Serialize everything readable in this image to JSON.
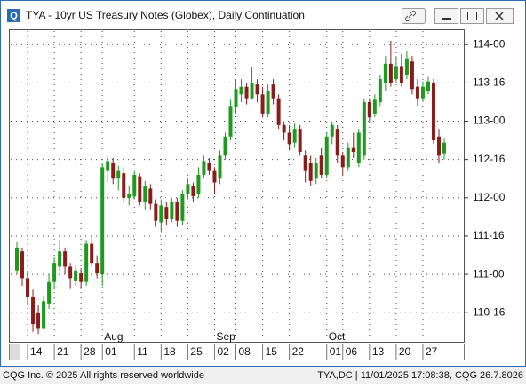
{
  "window": {
    "title": "TYA - 10yr US Treasury Notes (Globex), Daily Continuation"
  },
  "chart_data": {
    "type": "candlestick",
    "categories": [
      null,
      null,
      "14",
      null,
      null,
      null,
      null,
      "21",
      null,
      null,
      null,
      null,
      "28",
      null,
      null,
      null,
      "01",
      null,
      null,
      null,
      null,
      null,
      "11",
      null,
      null,
      null,
      null,
      "18",
      null,
      null,
      null,
      null,
      "25",
      null,
      null,
      null,
      null,
      "02",
      null,
      null,
      null,
      "08",
      null,
      null,
      null,
      null,
      "15",
      null,
      null,
      null,
      null,
      "22",
      null,
      null,
      null,
      null,
      null,
      null,
      "01",
      null,
      null,
      "06",
      null,
      null,
      null,
      null,
      "13",
      null,
      null,
      null,
      null,
      "20",
      null,
      null,
      null,
      null,
      "27",
      null,
      null,
      null,
      null
    ],
    "month_categories": [
      null,
      null,
      null,
      null,
      null,
      null,
      null,
      null,
      null,
      null,
      null,
      null,
      null,
      null,
      null,
      null,
      "Aug",
      null,
      null,
      null,
      null,
      null,
      null,
      null,
      null,
      null,
      null,
      null,
      null,
      null,
      null,
      null,
      null,
      null,
      null,
      null,
      null,
      "Sep",
      null,
      null,
      null,
      null,
      null,
      null,
      null,
      null,
      null,
      null,
      null,
      null,
      null,
      null,
      null,
      null,
      null,
      null,
      null,
      null,
      "Oct",
      null,
      null,
      null,
      null,
      null,
      null,
      null,
      null,
      null,
      null,
      null,
      null,
      null,
      null,
      null,
      null,
      null,
      null,
      null,
      null,
      null,
      null
    ],
    "open": [
      111.05,
      111.3,
      110.95,
      110.7,
      110.5,
      110.3,
      110.62,
      110.9,
      111.1,
      111.3,
      111.1,
      110.92,
      111.02,
      110.9,
      111.4,
      111.15,
      111.0,
      112.35,
      112.45,
      112.25,
      112.32,
      112.0,
      112.02,
      112.28,
      111.95,
      112.12,
      111.92,
      111.68,
      111.88,
      111.72,
      111.95,
      111.7,
      112.05,
      112.15,
      112.05,
      112.3,
      112.45,
      112.35,
      112.25,
      112.55,
      112.8,
      113.18,
      113.35,
      113.45,
      113.3,
      113.48,
      113.35,
      113.1,
      113.48,
      113.3,
      112.95,
      112.85,
      112.72,
      112.9,
      112.55,
      112.45,
      112.25,
      112.55,
      112.3,
      112.8,
      112.9,
      112.55,
      112.4,
      112.65,
      112.45,
      112.55,
      113.25,
      113.1,
      113.25,
      113.5,
      113.75,
      113.55,
      113.72,
      113.6,
      113.78,
      113.45,
      113.3,
      113.4,
      113.5,
      112.8,
      112.58
    ],
    "high": [
      111.42,
      111.35,
      111.05,
      110.8,
      110.6,
      110.72,
      111.0,
      111.22,
      111.45,
      111.35,
      111.15,
      111.12,
      111.08,
      111.45,
      111.5,
      111.25,
      112.45,
      112.55,
      112.52,
      112.42,
      112.4,
      112.15,
      112.35,
      112.32,
      112.22,
      112.18,
      111.98,
      111.98,
      111.95,
      112.0,
      112.0,
      112.1,
      112.25,
      112.2,
      112.4,
      112.55,
      112.52,
      112.4,
      112.62,
      112.85,
      113.28,
      113.55,
      113.55,
      113.5,
      113.7,
      113.55,
      113.45,
      113.48,
      113.55,
      113.35,
      113.0,
      112.95,
      112.98,
      112.95,
      112.62,
      112.55,
      112.52,
      112.65,
      112.85,
      113.0,
      112.95,
      112.6,
      112.72,
      112.85,
      112.9,
      113.3,
      113.3,
      113.35,
      113.6,
      113.85,
      114.05,
      113.85,
      113.88,
      113.92,
      113.85,
      113.55,
      113.52,
      113.58,
      113.55,
      112.9,
      112.78
    ],
    "low": [
      111.0,
      110.85,
      110.6,
      110.25,
      110.22,
      110.28,
      110.55,
      110.8,
      111.05,
      111.0,
      110.82,
      110.85,
      110.82,
      110.85,
      111.1,
      110.95,
      110.85,
      112.2,
      112.18,
      112.1,
      111.95,
      111.9,
      111.98,
      111.9,
      111.85,
      111.85,
      111.62,
      111.55,
      111.65,
      111.68,
      111.62,
      111.65,
      111.98,
      111.95,
      112.0,
      112.25,
      112.3,
      112.05,
      112.18,
      112.5,
      112.75,
      113.1,
      113.25,
      113.22,
      113.28,
      113.25,
      113.05,
      113.05,
      113.22,
      112.9,
      112.75,
      112.62,
      112.65,
      112.55,
      112.2,
      112.15,
      112.18,
      112.25,
      112.25,
      112.7,
      112.45,
      112.3,
      112.35,
      112.52,
      112.4,
      112.5,
      113.0,
      113.05,
      113.2,
      113.4,
      113.45,
      113.5,
      113.45,
      113.55,
      113.35,
      113.2,
      113.25,
      113.35,
      112.7,
      112.45,
      112.5
    ],
    "close": [
      111.35,
      110.95,
      110.7,
      110.35,
      110.3,
      110.65,
      110.9,
      111.15,
      111.3,
      111.1,
      110.95,
      111.05,
      110.9,
      111.4,
      111.15,
      111.02,
      112.4,
      112.48,
      112.25,
      112.35,
      112.0,
      112.05,
      112.3,
      111.95,
      112.15,
      111.92,
      111.7,
      111.9,
      111.72,
      111.95,
      111.7,
      112.05,
      112.18,
      112.02,
      112.3,
      112.48,
      112.35,
      112.2,
      112.55,
      112.8,
      113.2,
      113.42,
      113.45,
      113.3,
      113.5,
      113.35,
      113.1,
      113.4,
      113.3,
      112.95,
      112.85,
      112.7,
      112.9,
      112.6,
      112.35,
      112.22,
      112.45,
      112.3,
      112.8,
      112.95,
      112.55,
      112.4,
      112.65,
      112.6,
      112.85,
      113.25,
      113.05,
      113.28,
      113.55,
      113.75,
      113.5,
      113.72,
      113.5,
      113.82,
      113.42,
      113.3,
      113.45,
      113.52,
      112.75,
      112.55,
      112.72
    ],
    "up_color": "#1e9a1e",
    "down_color": "#8c1c1c",
    "ylim": [
      110.12,
      114.2
    ],
    "yticks": [
      {
        "value": 110.5,
        "label": "110-16"
      },
      {
        "value": 111,
        "label": "111-00"
      },
      {
        "value": 111.5,
        "label": "111-16"
      },
      {
        "value": 112,
        "label": "112-00"
      },
      {
        "value": 112.5,
        "label": "112-16"
      },
      {
        "value": 113,
        "label": "113-00"
      },
      {
        "value": 113.5,
        "label": "113-16"
      },
      {
        "value": 114,
        "label": "114-00"
      }
    ],
    "grid": true
  },
  "footer": {
    "left": "CQG Inc. © 2025 All rights reserved worldwide",
    "right": "TYA,DC | 11/01/2025 17:08:38, CQG 26.7.8026"
  }
}
